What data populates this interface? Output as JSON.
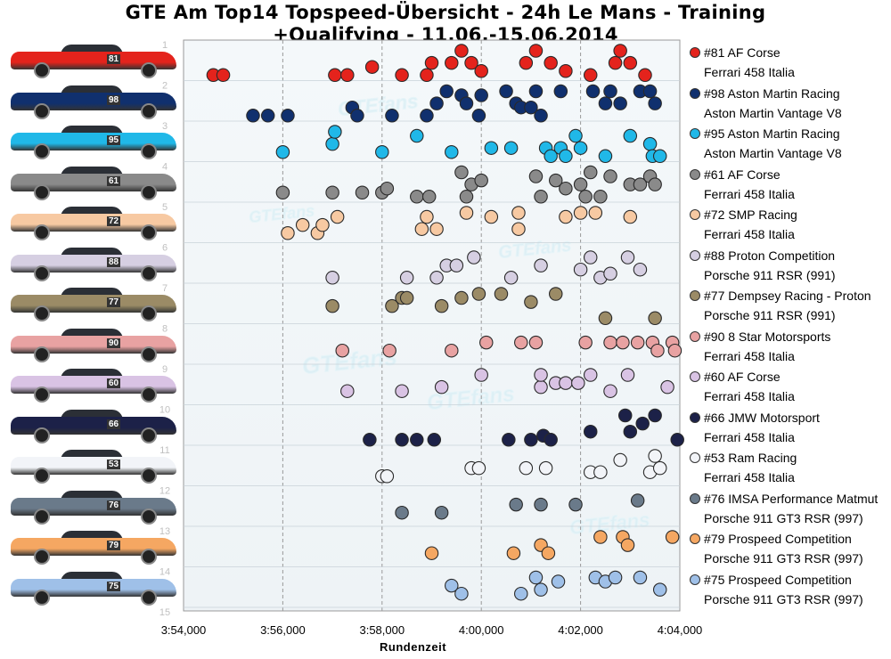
{
  "title": "GTE Am Top14 Topspeed-Übersicht - 24h Le Mans - Training +Qualifying - 11.06.-15.06.2014",
  "watermark": "GTEfans",
  "chart_data": {
    "type": "scatter",
    "title": "GTE Am Top14 Topspeed-Übersicht - 24h Le Mans - Training +Qualifying - 11.06.-15.06.2014",
    "xlabel": "Rundenzeit",
    "ylabel": "",
    "x_unit": "lap time m:ss,sss",
    "xlim": [
      "3:54,000",
      "4:04,000"
    ],
    "ylim": [
      1,
      15
    ],
    "y_reversed": true,
    "grid": "vertical dashed",
    "xticks": [
      "3:54,000",
      "3:56,000",
      "3:58,000",
      "4:00,000",
      "4:02,000",
      "4:04,000"
    ],
    "yticks": [
      "1",
      "2",
      "3",
      "4",
      "5",
      "6",
      "7",
      "8",
      "9",
      "10",
      "11",
      "12",
      "13",
      "14",
      "15"
    ],
    "legend_position": "right",
    "series": [
      {
        "name": "#81 AF Corse",
        "car": "Ferrari 458 Italia",
        "color": "#e4231c",
        "rank": 1,
        "x": [
          "3:54,60",
          "3:54,80",
          "3:57,05",
          "3:57,30",
          "3:57,80",
          "3:58,40",
          "3:58,90",
          "3:59,00",
          "3:59,40",
          "3:59,60",
          "3:59,80",
          "4:00,00",
          "4:00,90",
          "4:01,10",
          "4:01,40",
          "4:01,70",
          "4:02,20",
          "4:02,70",
          "4:02,80",
          "4:03,00",
          "4:03,30"
        ],
        "y": [
          1.6,
          1.6,
          1.6,
          1.6,
          1.4,
          1.6,
          1.6,
          1.3,
          1.3,
          1.0,
          1.3,
          1.5,
          1.3,
          1.0,
          1.3,
          1.5,
          1.6,
          1.3,
          1.0,
          1.3,
          1.6
        ]
      },
      {
        "name": "#98 Aston Martin Racing",
        "car": "Aston Martin Vantage V8",
        "color": "#10306e",
        "rank": 2,
        "x": [
          "3:55,40",
          "3:55,70",
          "3:56,10",
          "3:57,40",
          "3:57,50",
          "3:58,20",
          "3:58,90",
          "3:59,10",
          "3:59,30",
          "3:59,60",
          "3:59,70",
          "3:59,95",
          "4:00,00",
          "4:00,50",
          "4:00,70",
          "4:00,80",
          "4:01,00",
          "4:01,10",
          "4:01,20",
          "4:01,60",
          "4:02,25",
          "4:02,50",
          "4:02,60",
          "4:02,80",
          "4:03,20",
          "4:03,40",
          "4:03,50"
        ],
        "y": [
          2.6,
          2.6,
          2.6,
          2.4,
          2.6,
          2.6,
          2.6,
          2.3,
          2.0,
          2.1,
          2.3,
          2.6,
          2.1,
          2.0,
          2.3,
          2.4,
          2.4,
          2.0,
          2.6,
          2.0,
          2.0,
          2.3,
          2.0,
          2.3,
          2.0,
          2.0,
          2.3
        ]
      },
      {
        "name": "#95 Aston Martin Racing",
        "car": "Aston Martin Vantage V8",
        "color": "#20b8e8",
        "rank": 3,
        "x": [
          "3:56,00",
          "3:57,00",
          "3:57,05",
          "3:58,00",
          "3:58,70",
          "3:59,40",
          "4:00,20",
          "4:00,60",
          "4:01,30",
          "4:01,40",
          "4:01,60",
          "4:01,70",
          "4:01,90",
          "4:02,00",
          "4:02,50",
          "4:03,00",
          "4:03,40",
          "4:03,45",
          "4:03,60"
        ],
        "y": [
          3.5,
          3.3,
          3.0,
          3.5,
          3.1,
          3.5,
          3.4,
          3.4,
          3.4,
          3.6,
          3.4,
          3.6,
          3.1,
          3.4,
          3.6,
          3.1,
          3.3,
          3.6,
          3.6
        ]
      },
      {
        "name": "#61 AF Corse",
        "car": "Ferrari 458 Italia",
        "color": "#8a8a8a",
        "rank": 4,
        "x": [
          "3:56,00",
          "3:57,00",
          "3:57,60",
          "3:58,00",
          "3:58,10",
          "3:58,70",
          "3:58,95",
          "3:59,60",
          "3:59,70",
          "3:59,80",
          "4:00,00",
          "4:01,10",
          "4:01,20",
          "4:01,50",
          "4:01,70",
          "4:02,00",
          "4:02,10",
          "4:02,20",
          "4:02,40",
          "4:02,60",
          "4:03,00",
          "4:03,20",
          "4:03,40",
          "4:03,50"
        ],
        "y": [
          4.5,
          4.5,
          4.5,
          4.5,
          4.4,
          4.6,
          4.6,
          4.0,
          4.6,
          4.3,
          4.2,
          4.1,
          4.6,
          4.2,
          4.4,
          4.3,
          4.6,
          4.0,
          4.6,
          4.1,
          4.3,
          4.3,
          4.1,
          4.3
        ]
      },
      {
        "name": "#72 SMP Racing",
        "car": "Ferrari 458 Italia",
        "color": "#f7c9a2",
        "rank": 5,
        "x": [
          "3:56,10",
          "3:56,40",
          "3:56,70",
          "3:56,80",
          "3:57,10",
          "3:58,80",
          "3:58,90",
          "3:59,10",
          "3:59,70",
          "4:00,20",
          "4:00,75",
          "4:00,75",
          "4:01,70",
          "4:02,00",
          "4:02,30",
          "4:03,00"
        ],
        "y": [
          5.5,
          5.3,
          5.5,
          5.3,
          5.1,
          5.4,
          5.1,
          5.4,
          5.0,
          5.1,
          5.0,
          5.4,
          5.1,
          5.0,
          5.0,
          5.1
        ]
      },
      {
        "name": "#88 Proton Competition",
        "car": "Porsche 911 RSR (991)",
        "color": "#d6cfe2",
        "rank": 6,
        "x": [
          "3:57,00",
          "3:58,50",
          "3:59,10",
          "3:59,30",
          "3:59,50",
          "3:59,85",
          "4:00,60",
          "4:01,20",
          "4:02,00",
          "4:02,20",
          "4:02,40",
          "4:02,60",
          "4:02,95",
          "4:03,20"
        ],
        "y": [
          6.6,
          6.6,
          6.6,
          6.3,
          6.3,
          6.1,
          6.6,
          6.3,
          6.4,
          6.1,
          6.6,
          6.5,
          6.1,
          6.4
        ]
      },
      {
        "name": "#77 Dempsey Racing - Proton",
        "car": "Porsche 911 RSR (991)",
        "color": "#9b8b66",
        "rank": 7,
        "x": [
          "3:57,00",
          "3:58,20",
          "3:58,40",
          "3:58,50",
          "3:59,20",
          "3:59,60",
          "3:59,95",
          "4:00,40",
          "4:01,00",
          "4:01,50",
          "4:02,50",
          "4:03,50"
        ],
        "y": [
          7.3,
          7.3,
          7.1,
          7.1,
          7.3,
          7.1,
          7.0,
          7.0,
          7.2,
          7.0,
          7.6,
          7.6
        ]
      },
      {
        "name": "#90 8 Star Motorsports",
        "car": "Ferrari 458 Italia",
        "color": "#e8a2a2",
        "rank": 8,
        "x": [
          "3:57,20",
          "3:58,15",
          "3:59,40",
          "4:00,10",
          "4:00,80",
          "4:01,10",
          "4:02,10",
          "4:02,60",
          "4:02,85",
          "4:03,15",
          "4:03,45",
          "4:03,55",
          "4:03,85",
          "4:03,90"
        ],
        "y": [
          8.4,
          8.4,
          8.4,
          8.2,
          8.2,
          8.2,
          8.2,
          8.2,
          8.2,
          8.2,
          8.2,
          8.4,
          8.2,
          8.4
        ]
      },
      {
        "name": "#60 AF Corse",
        "car": "Ferrari 458 Italia",
        "color": "#d9c3e4",
        "rank": 9,
        "x": [
          "3:57,30",
          "3:58,40",
          "3:59,20",
          "4:00,00",
          "4:01,20",
          "4:01,20",
          "4:01,50",
          "4:01,70",
          "4:01,95",
          "4:02,20",
          "4:02,60",
          "4:02,95",
          "4:03,75"
        ],
        "y": [
          9.4,
          9.4,
          9.3,
          9.0,
          9.3,
          9.0,
          9.2,
          9.2,
          9.2,
          9.0,
          9.4,
          9.0,
          9.3
        ]
      },
      {
        "name": "#66 JMW Motorsport",
        "car": "Ferrari 458 Italia",
        "color": "#1c2148",
        "rank": 10,
        "x": [
          "3:57,75",
          "3:58,40",
          "3:58,70",
          "3:59,05",
          "4:00,55",
          "4:01,00",
          "4:01,25",
          "4:01,40",
          "4:02,20",
          "4:02,90",
          "4:03,00",
          "4:03,25",
          "4:03,50",
          "4:03,95"
        ],
        "y": [
          10.6,
          10.6,
          10.6,
          10.6,
          10.6,
          10.6,
          10.5,
          10.6,
          10.4,
          10.0,
          10.4,
          10.2,
          10.0,
          10.6
        ]
      },
      {
        "name": "#53 Ram Racing",
        "car": "Ferrari 458 Italia",
        "color": "#f2f4f8",
        "rank": 11,
        "x": [
          "3:58,00",
          "3:58,10",
          "3:59,80",
          "3:59,95",
          "4:00,90",
          "4:01,30",
          "4:02,20",
          "4:02,40",
          "4:02,80",
          "4:03,40",
          "4:03,50",
          "4:03,60"
        ],
        "y": [
          11.5,
          11.5,
          11.3,
          11.3,
          11.3,
          11.3,
          11.4,
          11.4,
          11.1,
          11.4,
          11.0,
          11.3
        ]
      },
      {
        "name": "#76 IMSA Performance Matmut",
        "car": "Porsche 911 GT3 RSR (997)",
        "color": "#6a7a8a",
        "rank": 12,
        "x": [
          "3:58,40",
          "3:59,20",
          "4:00,70",
          "4:01,20",
          "4:01,90",
          "4:03,15"
        ],
        "y": [
          12.4,
          12.4,
          12.2,
          12.2,
          12.2,
          12.1
        ]
      },
      {
        "name": "#79 Prospeed Competition",
        "car": "Porsche 911 GT3 RSR (997)",
        "color": "#f5a762",
        "rank": 13,
        "x": [
          "3:59,00",
          "4:00,65",
          "4:01,20",
          "4:01,35",
          "4:02,40",
          "4:02,85",
          "4:02,95",
          "4:03,85"
        ],
        "y": [
          13.4,
          13.4,
          13.2,
          13.4,
          13.0,
          13.0,
          13.2,
          13.0
        ]
      },
      {
        "name": "#75 Prospeed Competition",
        "car": "Porsche 911 GT3 RSR (997)",
        "color": "#9fc0e8",
        "rank": 14,
        "x": [
          "3:59,40",
          "3:59,60",
          "4:00,80",
          "4:01,10",
          "4:01,20",
          "4:01,55",
          "4:02,30",
          "4:02,50",
          "4:02,70",
          "4:03,20",
          "4:03,60"
        ],
        "y": [
          14.2,
          14.4,
          14.4,
          14.0,
          14.3,
          14.1,
          14.0,
          14.1,
          14.0,
          14.0,
          14.3
        ]
      }
    ]
  }
}
